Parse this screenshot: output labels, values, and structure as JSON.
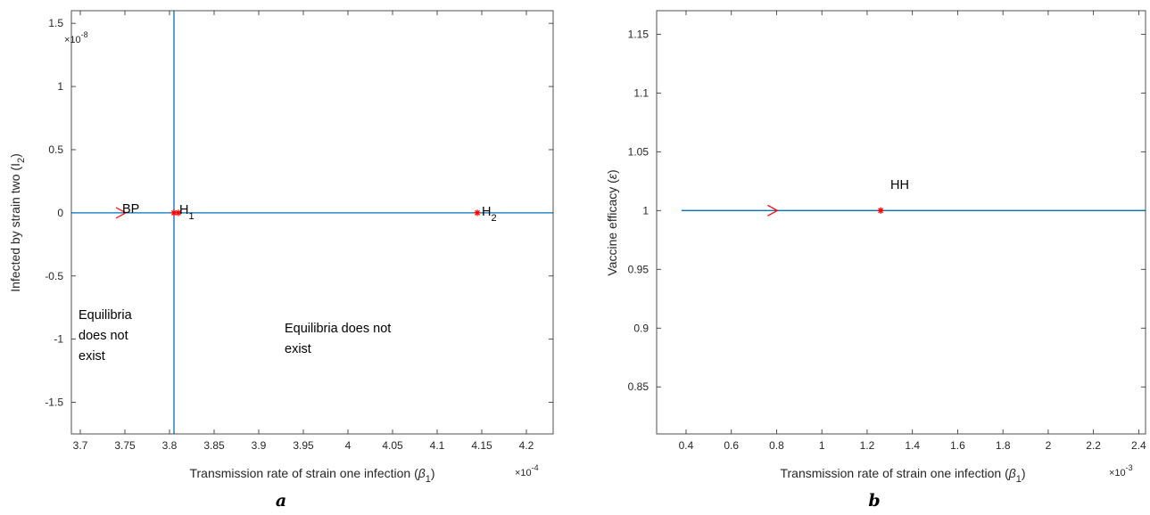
{
  "chart_data": [
    {
      "type": "line",
      "panel_label": "a",
      "xlabel": "Transmission rate of strain one infection (β1)",
      "xlabel_main": "Transmission rate of strain one infection (",
      "xlabel_sym": "β",
      "xlabel_sub": "1",
      "xlabel_end": ")",
      "ylabel": "Infected by strain two (I2)",
      "ylabel_main": "Infected by strain two (I",
      "ylabel_sub": "2",
      "ylabel_end": ")",
      "x_multiplier": "×10",
      "x_multiplier_exp": "-4",
      "y_multiplier": "×10",
      "y_multiplier_exp": "-8",
      "xlim": [
        3.69,
        4.23
      ],
      "ylim": [
        -1.75,
        1.6
      ],
      "xticks": [
        3.7,
        3.75,
        3.8,
        3.85,
        3.9,
        3.95,
        4.0,
        4.05,
        4.1,
        4.15,
        4.2
      ],
      "xtick_labels": [
        "3.7",
        "3.75",
        "3.8",
        "3.85",
        "3.9",
        "3.95",
        "4",
        "4.05",
        "4.1",
        "4.15",
        "4.2"
      ],
      "yticks": [
        -1.5,
        -1,
        -0.5,
        0,
        0.5,
        1,
        1.5
      ],
      "ytick_labels": [
        "-1.5",
        "-1",
        "-0.5",
        "0",
        "0.5",
        "1",
        "1.5"
      ],
      "series": [
        {
          "kind": "hline",
          "y": 0,
          "x": [
            3.69,
            4.23
          ],
          "color": "#0072bd"
        },
        {
          "kind": "vline",
          "x": 3.805,
          "y": [
            -1.75,
            1.6
          ],
          "color": "#0072bd"
        }
      ],
      "direction_arrow": {
        "x": 3.745,
        "y": 0,
        "color": "#ff0000"
      },
      "points": [
        {
          "label": "BP",
          "x": 3.805,
          "y": 0
        },
        {
          "label": "H1",
          "x": 3.81,
          "y": 0
        },
        {
          "label": "H2",
          "x": 4.145,
          "y": 0
        }
      ],
      "point_color": "#ff0000",
      "annotations": {
        "bp": "BP",
        "h1_main": "H",
        "h1_sub": "1",
        "h2_main": "H",
        "h2_sub": "2",
        "left_region": [
          "Equilibria",
          "does not",
          "exist"
        ],
        "right_region": [
          "Equilibria does not",
          "exist"
        ]
      }
    },
    {
      "type": "line",
      "panel_label": "b",
      "xlabel": "Transmission rate of strain one infection (β1)",
      "xlabel_main": "Transmission rate of strain one infection (",
      "xlabel_sym": "β",
      "xlabel_sub": "1",
      "xlabel_end": ")",
      "ylabel": "Vaccine efficacy (ε)",
      "ylabel_main": "Vaccine efficacy (",
      "ylabel_sym": "ε",
      "ylabel_end": ")",
      "x_multiplier": "×10",
      "x_multiplier_exp": "-3",
      "xlim": [
        0.27,
        2.43
      ],
      "ylim": [
        0.81,
        1.17
      ],
      "xticks": [
        0.4,
        0.6,
        0.8,
        1.0,
        1.2,
        1.4,
        1.6,
        1.8,
        2.0,
        2.2,
        2.4
      ],
      "xtick_labels": [
        "0.4",
        "0.6",
        "0.8",
        "1",
        "1.2",
        "1.4",
        "1.6",
        "1.8",
        "2",
        "2.2",
        "2.4"
      ],
      "yticks": [
        0.85,
        0.9,
        0.95,
        1.0,
        1.05,
        1.1,
        1.15
      ],
      "ytick_labels": [
        "0.85",
        "0.9",
        "0.95",
        "1",
        "1.05",
        "1.1",
        "1.15"
      ],
      "series": [
        {
          "kind": "hline",
          "y": 1,
          "x": [
            0.38,
            2.43
          ],
          "color": "#0072bd"
        }
      ],
      "direction_arrow": {
        "x": 0.78,
        "y": 1,
        "color": "#ff0000"
      },
      "points": [
        {
          "label": "HH",
          "x": 1.26,
          "y": 1
        }
      ],
      "point_color": "#ff0000",
      "annotations": {
        "hh": "HH"
      }
    }
  ]
}
